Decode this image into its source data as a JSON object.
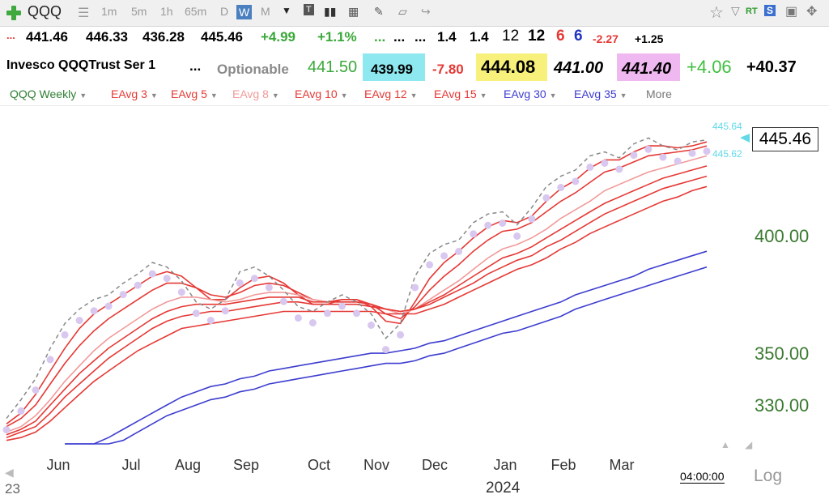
{
  "toolbar": {
    "symbol": "QQQ",
    "intervals": [
      "1m",
      "5m",
      "1h",
      "65m",
      "D",
      "W",
      "M"
    ],
    "selected_interval": "W"
  },
  "quote_row1": [
    "...",
    "441.46",
    "446.33",
    "436.28",
    "445.46",
    "+4.99",
    "+1.1%",
    "...",
    "...",
    "...",
    "1.4",
    "1.4",
    "12",
    "12",
    "6",
    "6",
    "-2.27",
    "+1.25"
  ],
  "quote_row2": {
    "name": "Invesco QQQTrust Ser 1",
    "dots": "...",
    "optionable": "Optionable",
    "last": "441.50",
    "bid": "439.99",
    "change": "-7.80",
    "ask": "444.08",
    "low": "441.00",
    "close": "441.40",
    "chg2": "+4.06",
    "chg3": "+40.37"
  },
  "studies": [
    {
      "label": "QQQ Weekly",
      "color": "#2e7d32"
    },
    {
      "label": "EAvg 3",
      "color": "#e53935"
    },
    {
      "label": "EAvg 5",
      "color": "#e53935"
    },
    {
      "label": "EAvg 8",
      "color": "#f19a9a"
    },
    {
      "label": "EAvg 10",
      "color": "#e53935"
    },
    {
      "label": "EAvg 12",
      "color": "#e53935"
    },
    {
      "label": "EAvg 15",
      "color": "#e53935"
    },
    {
      "label": "EAvg 30",
      "color": "#3d3dd0"
    },
    {
      "label": "EAvg 35",
      "color": "#3d3dd0"
    },
    {
      "label": "More",
      "color": "#666"
    }
  ],
  "price_axis": [
    "400.00",
    "350.00",
    "330.00"
  ],
  "last_price": "445.46",
  "tag_high": "445.64",
  "tag_low": "445.62",
  "months": [
    "Jun",
    "Jul",
    "Aug",
    "Sep",
    "Oct",
    "Nov",
    "Dec",
    "Jan",
    "Feb",
    "Mar"
  ],
  "year_label": "2024",
  "year_prev": "23",
  "time_label": "04:00:00",
  "log_label": "Log",
  "chart_data": {
    "type": "line",
    "price_label_values": [
      400,
      350,
      330
    ],
    "close_weekly": [
      325,
      332,
      340,
      352,
      362,
      368,
      372,
      374,
      379,
      383,
      388,
      386,
      380,
      371,
      368,
      372,
      384,
      386,
      382,
      376,
      369,
      367,
      371,
      374,
      371,
      366,
      356,
      362,
      382,
      392,
      396,
      398,
      406,
      410,
      411,
      405,
      413,
      423,
      428,
      431,
      438,
      440,
      437,
      444,
      447,
      443,
      441,
      445,
      446
    ],
    "series": [
      {
        "name": "EAvg 3",
        "color": "#e53935",
        "values": [
          323,
          327,
          334,
          343,
          352,
          360,
          366,
          370,
          374,
          378,
          382,
          384,
          382,
          377,
          372,
          372,
          377,
          381,
          382,
          379,
          374,
          370,
          370,
          372,
          372,
          369,
          363,
          362,
          371,
          381,
          388,
          393,
          399,
          404,
          407,
          406,
          409,
          416,
          422,
          426,
          432,
          436,
          436,
          440,
          443,
          443,
          442,
          443,
          445
        ]
      },
      {
        "name": "EAvg 5",
        "color": "#e53935",
        "values": [
          322,
          325,
          330,
          338,
          346,
          353,
          359,
          364,
          368,
          372,
          376,
          379,
          379,
          377,
          374,
          373,
          375,
          378,
          379,
          378,
          375,
          372,
          371,
          372,
          372,
          370,
          366,
          364,
          369,
          376,
          382,
          387,
          393,
          398,
          402,
          403,
          406,
          411,
          416,
          420,
          425,
          430,
          432,
          435,
          438,
          439,
          440,
          441,
          443
        ]
      },
      {
        "name": "EAvg 8",
        "color": "#f19a9a",
        "values": [
          320,
          322,
          326,
          332,
          339,
          345,
          351,
          356,
          360,
          364,
          368,
          371,
          373,
          373,
          372,
          371,
          372,
          374,
          375,
          375,
          374,
          372,
          371,
          371,
          371,
          370,
          368,
          366,
          368,
          372,
          376,
          380,
          385,
          390,
          394,
          396,
          399,
          403,
          408,
          412,
          416,
          421,
          424,
          427,
          430,
          432,
          434,
          436,
          438
        ]
      },
      {
        "name": "EAvg 10",
        "color": "#e53935",
        "values": [
          319,
          321,
          324,
          330,
          336,
          342,
          347,
          352,
          356,
          360,
          364,
          367,
          369,
          370,
          370,
          370,
          371,
          372,
          373,
          373,
          373,
          371,
          371,
          371,
          371,
          370,
          368,
          367,
          368,
          371,
          374,
          378,
          382,
          386,
          390,
          392,
          395,
          399,
          403,
          407,
          411,
          415,
          418,
          421,
          424,
          427,
          429,
          431,
          433
        ]
      },
      {
        "name": "EAvg 12",
        "color": "#e53935",
        "values": [
          318,
          320,
          322,
          327,
          333,
          338,
          343,
          348,
          352,
          356,
          360,
          363,
          365,
          366,
          367,
          367,
          368,
          369,
          370,
          371,
          371,
          370,
          370,
          370,
          370,
          369,
          368,
          367,
          368,
          370,
          373,
          376,
          379,
          383,
          386,
          389,
          391,
          395,
          398,
          402,
          406,
          410,
          413,
          416,
          419,
          422,
          424,
          426,
          428
        ]
      },
      {
        "name": "EAvg 15",
        "color": "#e53935",
        "values": [
          317,
          318,
          320,
          324,
          329,
          334,
          339,
          343,
          347,
          351,
          354,
          357,
          360,
          361,
          362,
          363,
          364,
          365,
          366,
          367,
          367,
          367,
          367,
          367,
          367,
          367,
          366,
          366,
          366,
          368,
          370,
          373,
          376,
          379,
          382,
          385,
          387,
          390,
          394,
          397,
          401,
          404,
          407,
          410,
          413,
          416,
          418,
          421,
          423
        ]
      },
      {
        "name": "EAvg 30",
        "color": "#3d3dd0",
        "values": [
          null,
          null,
          null,
          null,
          309,
          312,
          315,
          318,
          321,
          324,
          327,
          330,
          333,
          335,
          337,
          338,
          340,
          341,
          343,
          344,
          345,
          346,
          347,
          348,
          349,
          350,
          350,
          351,
          352,
          354,
          355,
          357,
          359,
          361,
          363,
          365,
          367,
          369,
          371,
          374,
          376,
          378,
          380,
          382,
          385,
          387,
          389,
          391,
          393
        ]
      },
      {
        "name": "EAvg 35",
        "color": "#3d3dd0",
        "values": [
          null,
          null,
          null,
          null,
          307,
          309,
          312,
          315,
          317,
          320,
          323,
          326,
          328,
          330,
          332,
          333,
          335,
          336,
          338,
          339,
          340,
          341,
          342,
          343,
          344,
          345,
          346,
          346,
          347,
          349,
          350,
          352,
          354,
          356,
          358,
          359,
          361,
          363,
          365,
          368,
          370,
          372,
          374,
          376,
          378,
          380,
          382,
          384,
          386
        ]
      }
    ]
  }
}
